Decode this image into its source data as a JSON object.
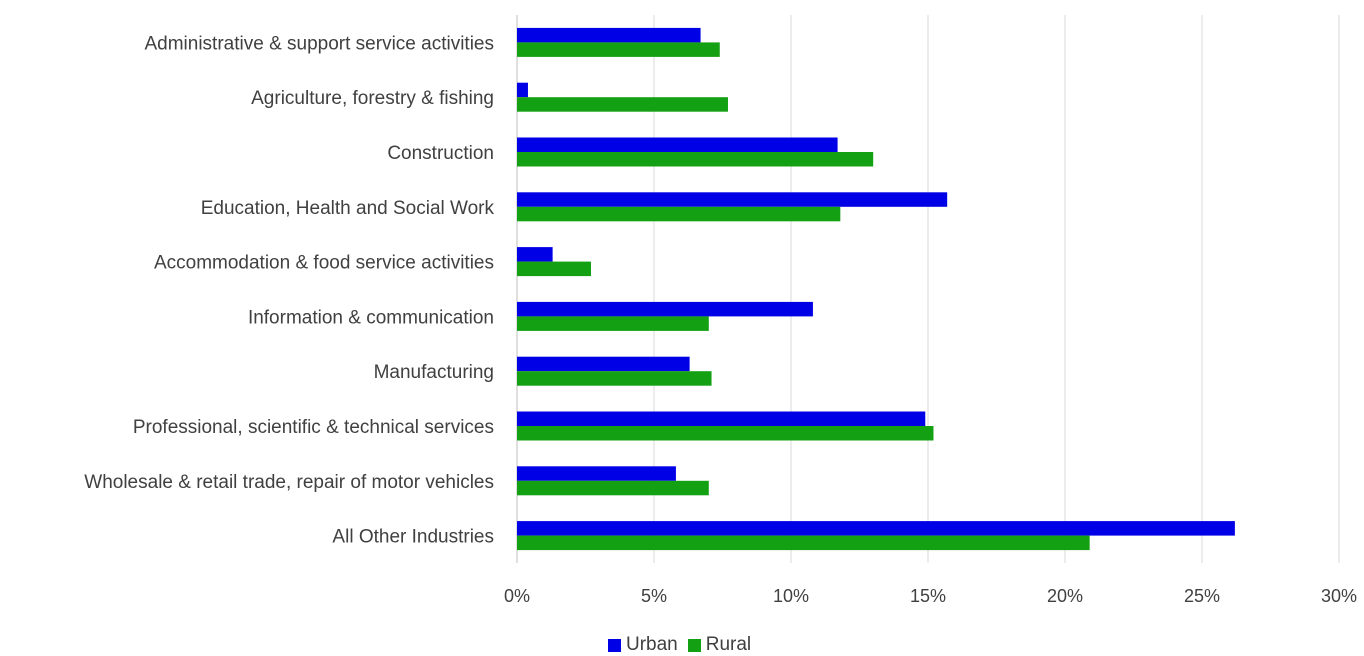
{
  "chart_data": {
    "type": "bar",
    "orientation": "horizontal",
    "categories": [
      "Administrative & support service activities",
      "Agriculture, forestry & fishing",
      "Construction",
      "Education, Health and Social Work",
      "Accommodation & food service activities",
      "Information & communication",
      "Manufacturing",
      "Professional, scientific & technical services",
      "Wholesale & retail trade, repair of motor vehicles",
      "All Other Industries"
    ],
    "series": [
      {
        "name": "Urban",
        "color": "#0000e6",
        "values": [
          6.7,
          0.4,
          11.7,
          15.7,
          1.3,
          10.8,
          6.3,
          14.9,
          5.8,
          26.2
        ]
      },
      {
        "name": "Rural",
        "color": "#13a013",
        "values": [
          7.4,
          7.7,
          13.0,
          11.8,
          2.7,
          7.0,
          7.1,
          15.2,
          7.0,
          20.9
        ]
      }
    ],
    "xlim": [
      0,
      30
    ],
    "xticks": [
      0,
      5,
      10,
      15,
      20,
      25,
      30
    ],
    "xtick_labels": [
      "0%",
      "5%",
      "10%",
      "15%",
      "20%",
      "25%",
      "30%"
    ],
    "grid": "vertical",
    "legend_position": "bottom",
    "title": "",
    "xlabel": "",
    "ylabel": ""
  }
}
